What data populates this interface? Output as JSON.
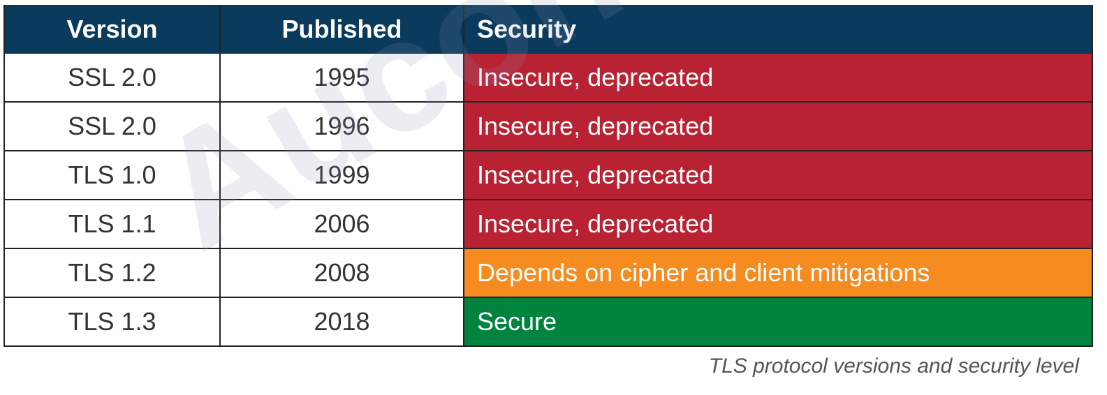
{
  "table": {
    "headers": [
      "Version",
      "Published",
      "Security"
    ],
    "rows": [
      {
        "version": "SSL 2.0",
        "published": 1995,
        "security": "Insecure, deprecated",
        "color": "#b82233"
      },
      {
        "version": "SSL 2.0",
        "published": 1996,
        "security": "Insecure, deprecated",
        "color": "#b82233"
      },
      {
        "version": "TLS 1.0",
        "published": 1999,
        "security": "Insecure, deprecated",
        "color": "#b82233"
      },
      {
        "version": "TLS 1.1",
        "published": 2006,
        "security": "Insecure, deprecated",
        "color": "#b82233"
      },
      {
        "version": "TLS 1.2",
        "published": 2008,
        "security": "Depends on cipher and client mitigations",
        "color": "#f68b1f"
      },
      {
        "version": "TLS 1.3",
        "published": 2018,
        "security": "Secure",
        "color": "#00843d"
      }
    ]
  },
  "caption": "TLS protocol versions and security level",
  "watermark": "Aucontech"
}
